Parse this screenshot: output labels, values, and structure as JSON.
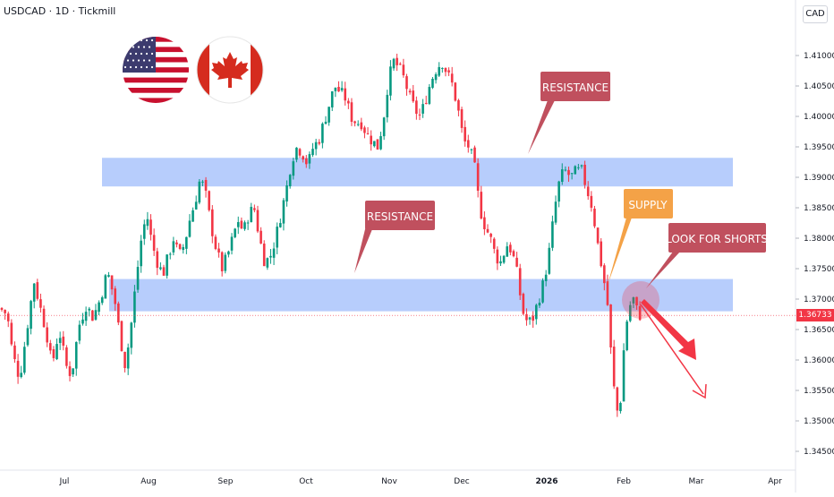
{
  "header": {
    "symbol": "USDCAD · 1D · Tickmill",
    "currency": "CAD"
  },
  "last_price": "1.36733",
  "colors": {
    "up": "#089981",
    "down": "#f23645",
    "zone": "#aac4fb",
    "label": "#c0505e",
    "supply": "#f4a247",
    "last_price_bg": "#f23645",
    "arrow": "#f23645"
  },
  "flags": [
    {
      "name": "usa-flag-icon"
    },
    {
      "name": "canada-flag-icon"
    }
  ],
  "annotations": {
    "resistance_top": "RESISTANCE",
    "resistance_mid": "RESISTANCE",
    "supply": "SUPPLY",
    "look_for_shorts": "LOOK FOR SHORTS"
  },
  "chart_data": {
    "type": "candlestick",
    "title": "USDCAD · 1D · Tickmill",
    "ylabel": "CAD",
    "ylim": [
      1.3425,
      1.4125
    ],
    "y_ticks": [
      "1.41000",
      "1.40500",
      "1.40000",
      "1.39500",
      "1.39000",
      "1.38500",
      "1.38000",
      "1.37500",
      "1.37000",
      "1.36500",
      "1.36000",
      "1.35500",
      "1.35000",
      "1.34500"
    ],
    "x_labels": [
      "Jul",
      "Aug",
      "Sep",
      "Oct",
      "Nov",
      "Dec",
      "2026",
      "Feb",
      "Mar",
      "Apr"
    ],
    "zones": [
      {
        "label": "RESISTANCE",
        "from": 1.3885,
        "to": 1.3932
      },
      {
        "label": "RESISTANCE",
        "from": 1.368,
        "to": 1.3733
      }
    ],
    "close_path": [
      [
        0,
        1.3685
      ],
      [
        8,
        1.3675
      ],
      [
        14,
        1.361
      ],
      [
        22,
        1.357
      ],
      [
        30,
        1.365
      ],
      [
        38,
        1.373
      ],
      [
        46,
        1.368
      ],
      [
        52,
        1.3645
      ],
      [
        58,
        1.359
      ],
      [
        66,
        1.365
      ],
      [
        74,
        1.359
      ],
      [
        80,
        1.3575
      ],
      [
        88,
        1.3655
      ],
      [
        96,
        1.369
      ],
      [
        104,
        1.367
      ],
      [
        112,
        1.37
      ],
      [
        120,
        1.3745
      ],
      [
        128,
        1.37
      ],
      [
        134,
        1.364
      ],
      [
        140,
        1.359
      ],
      [
        146,
        1.365
      ],
      [
        152,
        1.373
      ],
      [
        158,
        1.38
      ],
      [
        164,
        1.384
      ],
      [
        170,
        1.379
      ],
      [
        176,
        1.376
      ],
      [
        182,
        1.374
      ],
      [
        188,
        1.377
      ],
      [
        194,
        1.38
      ],
      [
        200,
        1.377
      ],
      [
        206,
        1.379
      ],
      [
        212,
        1.383
      ],
      [
        218,
        1.386
      ],
      [
        224,
        1.39
      ],
      [
        230,
        1.387
      ],
      [
        236,
        1.382
      ],
      [
        242,
        1.378
      ],
      [
        248,
        1.375
      ],
      [
        254,
        1.377
      ],
      [
        260,
        1.38
      ],
      [
        266,
        1.383
      ],
      [
        272,
        1.381
      ],
      [
        278,
        1.384
      ],
      [
        284,
        1.385
      ],
      [
        290,
        1.38
      ],
      [
        296,
        1.376
      ],
      [
        302,
        1.377
      ],
      [
        308,
        1.38
      ],
      [
        314,
        1.384
      ],
      [
        320,
        1.388
      ],
      [
        326,
        1.393
      ],
      [
        332,
        1.395
      ],
      [
        338,
        1.394
      ],
      [
        344,
        1.392
      ],
      [
        350,
        1.395
      ],
      [
        356,
        1.396
      ],
      [
        362,
        1.399
      ],
      [
        368,
        1.402
      ],
      [
        374,
        1.405
      ],
      [
        380,
        1.404
      ],
      [
        386,
        1.403
      ],
      [
        392,
        1.4
      ],
      [
        398,
        1.399
      ],
      [
        404,
        1.399
      ],
      [
        410,
        1.397
      ],
      [
        416,
        1.396
      ],
      [
        422,
        1.395
      ],
      [
        428,
        1.399
      ],
      [
        434,
        1.406
      ],
      [
        440,
        1.409
      ],
      [
        446,
        1.408
      ],
      [
        452,
        1.406
      ],
      [
        458,
        1.403
      ],
      [
        464,
        1.401
      ],
      [
        470,
        1.4
      ],
      [
        476,
        1.403
      ],
      [
        482,
        1.406
      ],
      [
        488,
        1.408
      ],
      [
        494,
        1.409
      ],
      [
        500,
        1.407
      ],
      [
        506,
        1.405
      ],
      [
        512,
        1.401
      ],
      [
        518,
        1.396
      ],
      [
        524,
        1.395
      ],
      [
        530,
        1.392
      ],
      [
        536,
        1.385
      ],
      [
        542,
        1.382
      ],
      [
        548,
        1.38
      ],
      [
        554,
        1.377
      ],
      [
        560,
        1.376
      ],
      [
        566,
        1.379
      ],
      [
        572,
        1.378
      ],
      [
        578,
        1.374
      ],
      [
        584,
        1.368
      ],
      [
        590,
        1.366
      ],
      [
        596,
        1.367
      ],
      [
        602,
        1.37
      ],
      [
        608,
        1.373
      ],
      [
        614,
        1.378
      ],
      [
        620,
        1.385
      ],
      [
        626,
        1.39
      ],
      [
        632,
        1.391
      ],
      [
        638,
        1.39
      ],
      [
        644,
        1.391
      ],
      [
        650,
        1.391
      ],
      [
        656,
        1.388
      ],
      [
        662,
        1.385
      ],
      [
        668,
        1.379
      ],
      [
        674,
        1.374
      ],
      [
        680,
        1.368
      ],
      [
        684,
        1.358
      ],
      [
        688,
        1.353
      ],
      [
        692,
        1.35
      ],
      [
        696,
        1.36
      ],
      [
        700,
        1.366
      ],
      [
        704,
        1.369
      ],
      [
        708,
        1.37
      ],
      [
        712,
        1.368
      ],
      [
        716,
        1.3672
      ]
    ]
  }
}
